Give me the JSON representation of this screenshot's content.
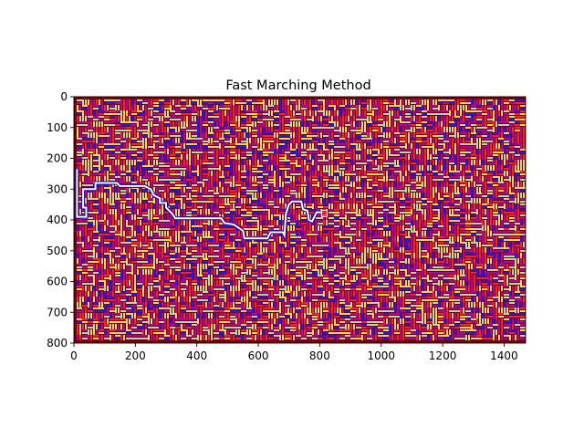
{
  "chart_data": {
    "type": "heatmap",
    "title": "Fast Marching Method",
    "xlabel": "",
    "ylabel": "",
    "xlim": [
      0,
      1470
    ],
    "ylim": [
      800,
      0
    ],
    "y_inverted": true,
    "xticks": [
      0,
      200,
      400,
      600,
      800,
      1000,
      1200,
      1400
    ],
    "yticks": [
      0,
      100,
      200,
      300,
      400,
      500,
      600,
      700,
      800
    ],
    "grid": false,
    "legend": "none",
    "colors": {
      "wall": "#7a0000",
      "far": "#1a1aff",
      "mid": "#b000b0",
      "near": "#ff2020",
      "light": "#a8e0a0",
      "yellow": "#ffe040",
      "path": "#ffffff",
      "path_outline": "#0000cc"
    },
    "maze_path": [
      [
        10,
        235
      ],
      [
        10,
        390
      ],
      [
        40,
        390
      ],
      [
        40,
        360
      ],
      [
        30,
        360
      ],
      [
        30,
        300
      ],
      [
        70,
        300
      ],
      [
        70,
        280
      ],
      [
        140,
        280
      ],
      [
        150,
        290
      ],
      [
        230,
        290
      ],
      [
        250,
        300
      ],
      [
        260,
        320
      ],
      [
        280,
        330
      ],
      [
        280,
        345
      ],
      [
        300,
        345
      ],
      [
        300,
        360
      ],
      [
        320,
        380
      ],
      [
        330,
        395
      ],
      [
        480,
        395
      ],
      [
        490,
        410
      ],
      [
        520,
        415
      ],
      [
        550,
        435
      ],
      [
        555,
        460
      ],
      [
        630,
        460
      ],
      [
        640,
        440
      ],
      [
        680,
        440
      ],
      [
        685,
        450
      ],
      [
        690,
        380
      ],
      [
        700,
        350
      ],
      [
        710,
        340
      ],
      [
        740,
        340
      ],
      [
        745,
        365
      ],
      [
        760,
        370
      ],
      [
        765,
        400
      ],
      [
        775,
        405
      ],
      [
        790,
        375
      ],
      [
        810,
        375
      ]
    ],
    "target": [
      815,
      380
    ]
  }
}
